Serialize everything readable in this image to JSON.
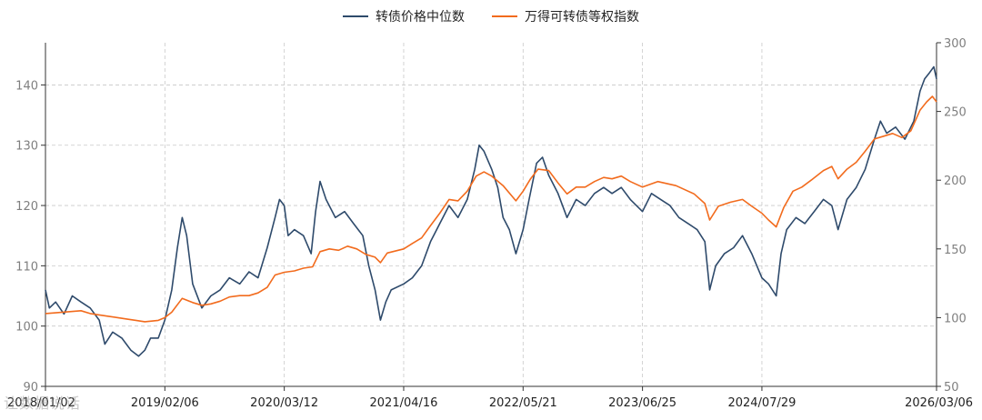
{
  "legend": {
    "series1": "转债价格中位数",
    "series2": "万得可转债等权指数"
  },
  "colors": {
    "series1": "#2e4a6b",
    "series2": "#f26b1d",
    "grid": "#c8c8c8",
    "axis": "#333333"
  },
  "watermark": "让数据说话",
  "chart_data": {
    "type": "line",
    "x_ticks": [
      "2018/01/02",
      "2019/02/06",
      "2020/03/12",
      "2021/04/16",
      "2022/05/21",
      "2023/06/25",
      "2024/07/29",
      "2026/03/06"
    ],
    "x_range": [
      "2018/01/02",
      "2026/03/06"
    ],
    "y_left": {
      "min": 90,
      "max": 147,
      "ticks": [
        90,
        100,
        110,
        120,
        130,
        140
      ]
    },
    "y_right": {
      "min": 50,
      "max": 300,
      "ticks": [
        50,
        100,
        150,
        200,
        250,
        300
      ]
    },
    "grid": true,
    "legend_position": "top-center",
    "series": [
      {
        "name": "转债价格中位数",
        "axis": "left",
        "points": [
          [
            "2018/01/02",
            106
          ],
          [
            "2018/01/15",
            103
          ],
          [
            "2018/02/05",
            104
          ],
          [
            "2018/03/05",
            102
          ],
          [
            "2018/04/02",
            105
          ],
          [
            "2018/05/01",
            104
          ],
          [
            "2018/06/01",
            103
          ],
          [
            "2018/07/01",
            101
          ],
          [
            "2018/07/20",
            97
          ],
          [
            "2018/08/15",
            99
          ],
          [
            "2018/09/15",
            98
          ],
          [
            "2018/10/15",
            96
          ],
          [
            "2018/11/10",
            95
          ],
          [
            "2018/12/01",
            96
          ],
          [
            "2018/12/20",
            98
          ],
          [
            "2019/01/15",
            98
          ],
          [
            "2019/02/06",
            101
          ],
          [
            "2019/03/01",
            106
          ],
          [
            "2019/03/20",
            113
          ],
          [
            "2019/04/05",
            118
          ],
          [
            "2019/04/20",
            115
          ],
          [
            "2019/05/10",
            107
          ],
          [
            "2019/06/10",
            103
          ],
          [
            "2019/07/10",
            105
          ],
          [
            "2019/08/10",
            106
          ],
          [
            "2019/09/10",
            108
          ],
          [
            "2019/10/15",
            107
          ],
          [
            "2019/11/15",
            109
          ],
          [
            "2019/12/15",
            108
          ],
          [
            "2020/01/15",
            113
          ],
          [
            "2020/02/10",
            118
          ],
          [
            "2020/02/25",
            121
          ],
          [
            "2020/03/12",
            120
          ],
          [
            "2020/03/25",
            115
          ],
          [
            "2020/04/15",
            116
          ],
          [
            "2020/05/15",
            115
          ],
          [
            "2020/06/10",
            112
          ],
          [
            "2020/06/25",
            119
          ],
          [
            "2020/07/10",
            124
          ],
          [
            "2020/07/30",
            121
          ],
          [
            "2020/08/30",
            118
          ],
          [
            "2020/09/30",
            119
          ],
          [
            "2020/10/30",
            117
          ],
          [
            "2020/11/30",
            115
          ],
          [
            "2020/12/20",
            110
          ],
          [
            "2021/01/10",
            106
          ],
          [
            "2021/01/28",
            101
          ],
          [
            "2021/02/15",
            104
          ],
          [
            "2021/03/05",
            106
          ],
          [
            "2021/04/16",
            107
          ],
          [
            "2021/05/15",
            108
          ],
          [
            "2021/06/15",
            110
          ],
          [
            "2021/07/15",
            114
          ],
          [
            "2021/08/15",
            117
          ],
          [
            "2021/09/15",
            120
          ],
          [
            "2021/10/15",
            118
          ],
          [
            "2021/11/15",
            121
          ],
          [
            "2021/12/10",
            126
          ],
          [
            "2021/12/25",
            130
          ],
          [
            "2022/01/10",
            129
          ],
          [
            "2022/02/05",
            126
          ],
          [
            "2022/02/25",
            123
          ],
          [
            "2022/03/15",
            118
          ],
          [
            "2022/04/05",
            116
          ],
          [
            "2022/04/27",
            112
          ],
          [
            "2022/05/21",
            116
          ],
          [
            "2022/06/10",
            121
          ],
          [
            "2022/07/05",
            127
          ],
          [
            "2022/07/25",
            128
          ],
          [
            "2022/08/15",
            125
          ],
          [
            "2022/09/15",
            122
          ],
          [
            "2022/10/15",
            118
          ],
          [
            "2022/11/15",
            121
          ],
          [
            "2022/12/15",
            120
          ],
          [
            "2023/01/15",
            122
          ],
          [
            "2023/02/15",
            123
          ],
          [
            "2023/03/15",
            122
          ],
          [
            "2023/04/15",
            123
          ],
          [
            "2023/05/15",
            121
          ],
          [
            "2023/06/25",
            119
          ],
          [
            "2023/07/25",
            122
          ],
          [
            "2023/08/25",
            121
          ],
          [
            "2023/09/25",
            120
          ],
          [
            "2023/10/25",
            118
          ],
          [
            "2023/11/25",
            117
          ],
          [
            "2023/12/25",
            116
          ],
          [
            "2024/01/20",
            114
          ],
          [
            "2024/02/05",
            106
          ],
          [
            "2024/02/25",
            110
          ],
          [
            "2024/03/25",
            112
          ],
          [
            "2024/04/25",
            113
          ],
          [
            "2024/05/25",
            115
          ],
          [
            "2024/06/25",
            112
          ],
          [
            "2024/07/29",
            108
          ],
          [
            "2024/08/20",
            107
          ],
          [
            "2024/09/15",
            105
          ],
          [
            "2024/10/01",
            112
          ],
          [
            "2024/10/20",
            116
          ],
          [
            "2024/11/20",
            118
          ],
          [
            "2024/12/20",
            117
          ],
          [
            "2025/01/20",
            119
          ],
          [
            "2025/02/20",
            121
          ],
          [
            "2025/03/20",
            120
          ],
          [
            "2025/04/10",
            116
          ],
          [
            "2025/05/10",
            121
          ],
          [
            "2025/06/10",
            123
          ],
          [
            "2025/07/10",
            126
          ],
          [
            "2025/08/10",
            131
          ],
          [
            "2025/08/30",
            134
          ],
          [
            "2025/09/20",
            132
          ],
          [
            "2025/10/20",
            133
          ],
          [
            "2025/11/20",
            131
          ],
          [
            "2025/12/20",
            134
          ],
          [
            "2026/01/10",
            139
          ],
          [
            "2026/01/25",
            141
          ],
          [
            "2026/02/10",
            142
          ],
          [
            "2026/02/25",
            143
          ],
          [
            "2026/03/06",
            141
          ]
        ]
      },
      {
        "name": "万得可转债等权指数",
        "axis": "right",
        "points": [
          [
            "2018/01/02",
            103
          ],
          [
            "2018/03/01",
            104
          ],
          [
            "2018/05/01",
            105
          ],
          [
            "2018/06/01",
            103
          ],
          [
            "2018/07/01",
            102
          ],
          [
            "2018/08/01",
            101
          ],
          [
            "2018/09/01",
            100
          ],
          [
            "2018/10/01",
            99
          ],
          [
            "2018/11/01",
            98
          ],
          [
            "2018/12/01",
            97
          ],
          [
            "2019/01/15",
            98
          ],
          [
            "2019/02/06",
            100
          ],
          [
            "2019/03/01",
            104
          ],
          [
            "2019/04/05",
            114
          ],
          [
            "2019/05/10",
            111
          ],
          [
            "2019/06/10",
            109
          ],
          [
            "2019/07/10",
            110
          ],
          [
            "2019/08/10",
            112
          ],
          [
            "2019/09/10",
            115
          ],
          [
            "2019/10/15",
            116
          ],
          [
            "2019/11/15",
            116
          ],
          [
            "2019/12/15",
            118
          ],
          [
            "2020/01/15",
            122
          ],
          [
            "2020/02/10",
            131
          ],
          [
            "2020/03/12",
            133
          ],
          [
            "2020/04/15",
            134
          ],
          [
            "2020/05/15",
            136
          ],
          [
            "2020/06/15",
            137
          ],
          [
            "2020/07/10",
            148
          ],
          [
            "2020/08/10",
            150
          ],
          [
            "2020/09/10",
            149
          ],
          [
            "2020/10/10",
            152
          ],
          [
            "2020/11/10",
            150
          ],
          [
            "2020/12/10",
            146
          ],
          [
            "2021/01/10",
            144
          ],
          [
            "2021/01/28",
            140
          ],
          [
            "2021/02/20",
            147
          ],
          [
            "2021/04/16",
            150
          ],
          [
            "2021/05/15",
            154
          ],
          [
            "2021/06/15",
            158
          ],
          [
            "2021/07/15",
            167
          ],
          [
            "2021/08/15",
            176
          ],
          [
            "2021/09/15",
            186
          ],
          [
            "2021/10/15",
            185
          ],
          [
            "2021/11/15",
            192
          ],
          [
            "2021/12/15",
            203
          ],
          [
            "2022/01/10",
            206
          ],
          [
            "2022/02/05",
            203
          ],
          [
            "2022/03/15",
            196
          ],
          [
            "2022/04/27",
            185
          ],
          [
            "2022/05/21",
            192
          ],
          [
            "2022/06/15",
            201
          ],
          [
            "2022/07/10",
            208
          ],
          [
            "2022/08/15",
            207
          ],
          [
            "2022/09/15",
            198
          ],
          [
            "2022/10/15",
            190
          ],
          [
            "2022/11/15",
            195
          ],
          [
            "2022/12/15",
            195
          ],
          [
            "2023/01/15",
            199
          ],
          [
            "2023/02/15",
            202
          ],
          [
            "2023/03/15",
            201
          ],
          [
            "2023/04/15",
            203
          ],
          [
            "2023/05/15",
            199
          ],
          [
            "2023/06/25",
            195
          ],
          [
            "2023/08/15",
            199
          ],
          [
            "2023/10/15",
            196
          ],
          [
            "2023/12/15",
            190
          ],
          [
            "2024/01/20",
            183
          ],
          [
            "2024/02/05",
            171
          ],
          [
            "2024/03/05",
            181
          ],
          [
            "2024/04/15",
            184
          ],
          [
            "2024/05/25",
            186
          ],
          [
            "2024/06/25",
            181
          ],
          [
            "2024/07/29",
            176
          ],
          [
            "2024/08/20",
            171
          ],
          [
            "2024/09/15",
            166
          ],
          [
            "2024/10/10",
            180
          ],
          [
            "2024/11/10",
            192
          ],
          [
            "2024/12/10",
            195
          ],
          [
            "2025/01/10",
            200
          ],
          [
            "2025/02/20",
            207
          ],
          [
            "2025/03/20",
            210
          ],
          [
            "2025/04/10",
            201
          ],
          [
            "2025/05/10",
            208
          ],
          [
            "2025/06/10",
            213
          ],
          [
            "2025/07/10",
            221
          ],
          [
            "2025/08/10",
            230
          ],
          [
            "2025/09/10",
            232
          ],
          [
            "2025/10/10",
            234
          ],
          [
            "2025/11/10",
            231
          ],
          [
            "2025/12/10",
            236
          ],
          [
            "2026/01/10",
            251
          ],
          [
            "2026/02/01",
            257
          ],
          [
            "2026/02/20",
            261
          ],
          [
            "2026/03/06",
            257
          ]
        ]
      }
    ]
  }
}
